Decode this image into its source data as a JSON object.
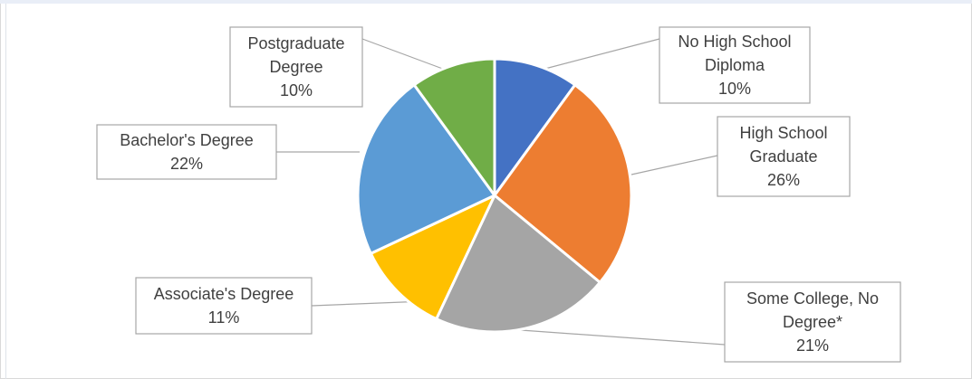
{
  "chart_data": {
    "type": "pie",
    "title": "",
    "slices": [
      {
        "label_lines": [
          "No High School",
          "Diploma"
        ],
        "percent_label": "10%",
        "value": 10,
        "color": "#4472C4"
      },
      {
        "label_lines": [
          "High School",
          "Graduate"
        ],
        "percent_label": "26%",
        "value": 26,
        "color": "#ED7D31"
      },
      {
        "label_lines": [
          "Some College, No",
          "Degree*"
        ],
        "percent_label": "21%",
        "value": 21,
        "color": "#A5A5A5"
      },
      {
        "label_lines": [
          "Associate's Degree"
        ],
        "percent_label": "11%",
        "value": 11,
        "color": "#FFC000"
      },
      {
        "label_lines": [
          "Bachelor's Degree"
        ],
        "percent_label": "22%",
        "value": 22,
        "color": "#5B9BD5"
      },
      {
        "label_lines": [
          "Postgraduate",
          "Degree"
        ],
        "percent_label": "10%",
        "value": 10,
        "color": "#70AD47"
      }
    ],
    "start_angle": "12 o'clock",
    "direction": "clockwise",
    "legend": "none",
    "data_labels": "callouts"
  }
}
